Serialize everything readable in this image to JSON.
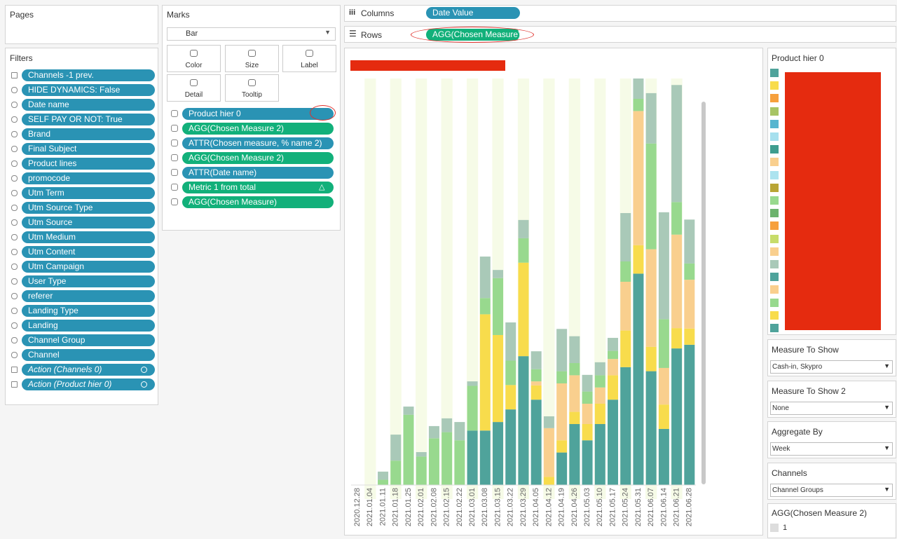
{
  "pages": {
    "title": "Pages"
  },
  "filters": {
    "title": "Filters",
    "items": [
      "Channels -1 prev.",
      "HIDE DYNAMICS: False",
      "Date name",
      "SELF PAY OR NOT: True",
      "Brand",
      "Final Subject",
      "Product lines",
      "promocode",
      "Utm Term",
      "Utm Source Type",
      "Utm Source",
      "Utm Medium",
      "Utm Content",
      "Utm Campaign",
      "User Type",
      "referer",
      "Landing Type",
      "Landing",
      "Channel Group",
      "Channel",
      "Action (Channels 0)",
      "Action (Product hier 0)"
    ]
  },
  "marks": {
    "title": "Marks",
    "mark_type": "Bar",
    "buttons": [
      "Color",
      "Size",
      "Label",
      "Detail",
      "Tooltip"
    ],
    "fields": [
      {
        "label": "Product hier 0",
        "color": "#2a93b4"
      },
      {
        "label": "AGG(Chosen Measure 2)",
        "color": "#12b07a"
      },
      {
        "label": "ATTR(Chosen measure, % name 2)",
        "color": "#2a93b4"
      },
      {
        "label": "AGG(Chosen Measure 2)",
        "color": "#12b07a"
      },
      {
        "label": "ATTR(Date name)",
        "color": "#2a93b4"
      },
      {
        "label": "Metric 1 from total",
        "color": "#12b07a"
      },
      {
        "label": "AGG(Chosen Measure)",
        "color": "#12b07a"
      }
    ]
  },
  "shelves": {
    "columns": {
      "label": "Columns",
      "pill": "Date Value"
    },
    "rows": {
      "label": "Rows",
      "pill": "AGG(Chosen Measure)"
    }
  },
  "legend": {
    "title": "Product hier 0"
  },
  "parameters": [
    {
      "title": "Measure To Show",
      "value": "Cash-in, Skypro"
    },
    {
      "title": "Measure To Show 2",
      "value": "None"
    },
    {
      "title": "Aggregate By",
      "value": "Week"
    },
    {
      "title": "Channels",
      "value": "Channel Groups"
    }
  ],
  "size_legend": {
    "title": "AGG(Chosen Measure 2)",
    "item": "1"
  },
  "chart_data": {
    "type": "stacked_bar",
    "categories": [
      "2020.12.28",
      "2021.01.04",
      "2021.01.11",
      "2021.01.18",
      "2021.01.25",
      "2021.02.01",
      "2021.02.08",
      "2021.02.15",
      "2021.02.22",
      "2021.03.01",
      "2021.03.08",
      "2021.03.15",
      "2021.03.22",
      "2021.03.29",
      "2021.04.05",
      "2021.04.12",
      "2021.04.19",
      "2021.04.26",
      "2021.05.03",
      "2021.05.10",
      "2021.05.17",
      "2021.05.24",
      "2021.05.31",
      "2021.06.07",
      "2021.06.14",
      "2021.06.21",
      "2021.06.28"
    ],
    "ylim": [
      0,
      100
    ],
    "series": [
      {
        "color": "#4fa39b",
        "values": [
          0,
          0,
          0,
          0,
          0,
          0,
          0,
          0,
          0,
          13.4,
          13.4,
          15.5,
          18.6,
          31.7,
          21,
          0,
          8,
          15,
          11,
          15,
          21,
          29,
          52,
          28,
          13.8,
          33.6,
          34.5
        ]
      },
      {
        "color": "#f8dc4c",
        "values": [
          0,
          0,
          0,
          0,
          0,
          0,
          0,
          0,
          0,
          0,
          28.6,
          21.4,
          6,
          23,
          3.5,
          2,
          3,
          3,
          4,
          5,
          6,
          9,
          7,
          6,
          6,
          5,
          4
        ]
      },
      {
        "color": "#f9cf8e",
        "values": [
          0,
          0,
          0,
          0,
          0,
          0,
          0,
          0,
          0,
          0,
          0,
          0,
          0,
          0,
          1,
          12,
          14,
          9,
          5,
          4,
          4,
          12,
          33,
          24,
          9,
          23,
          12
        ]
      },
      {
        "color": "#98d98e",
        "values": [
          0,
          0,
          1.3,
          6,
          17.3,
          7,
          11.5,
          13,
          11,
          11,
          4,
          14,
          6,
          6,
          3,
          0,
          3,
          3,
          3,
          3,
          2,
          5,
          3,
          26,
          12,
          8,
          4
        ]
      },
      {
        "color": "#a9c9b8",
        "values": [
          0,
          0,
          2,
          6.4,
          2,
          1.1,
          3,
          3.4,
          4.5,
          1.1,
          10.2,
          2,
          9.4,
          4.5,
          4.4,
          2.9,
          10.4,
          6.6,
          4.1,
          3.2,
          3.2,
          11.9,
          5,
          12.4,
          26.3,
          28.8,
          10.8
        ]
      }
    ]
  }
}
